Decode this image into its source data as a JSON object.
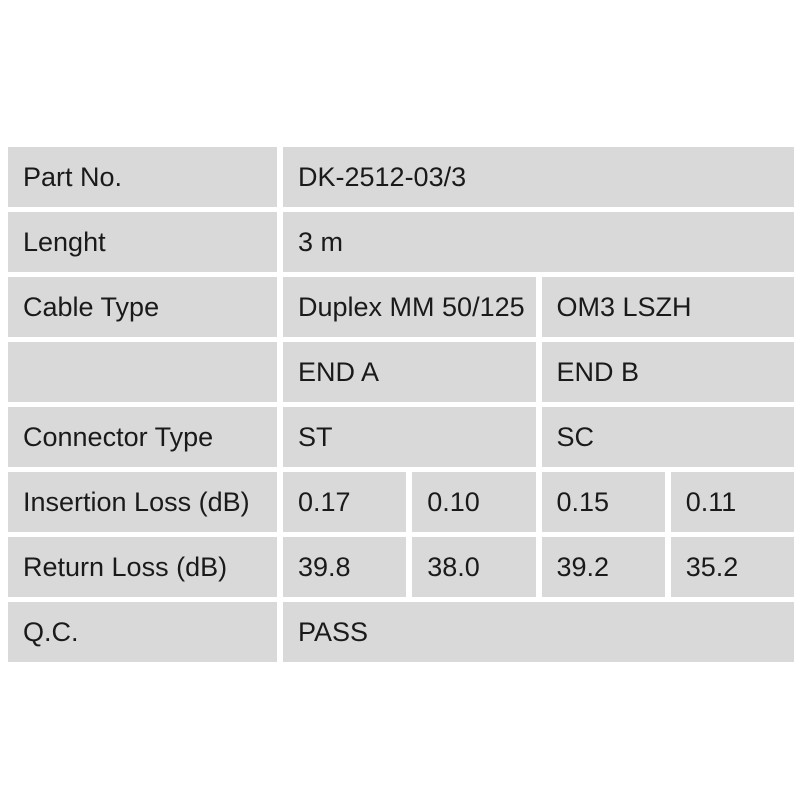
{
  "meta": {
    "page_bg": "#ffffff",
    "cell_bg": "#d9d9d9",
    "text_color": "#1a1a1a",
    "description": "Fiber patch cable specification / QC test table"
  },
  "table": {
    "rows": [
      {
        "label": "Part No.",
        "cells": [
          {
            "text": "DK-2512-03/3",
            "span": 4
          }
        ]
      },
      {
        "label": "Lenght",
        "cells": [
          {
            "text": "3 m",
            "span": 4
          }
        ]
      },
      {
        "label": "Cable Type",
        "cells": [
          {
            "text": "Duplex MM 50/125",
            "span": 2
          },
          {
            "text": "OM3 LSZH",
            "span": 2
          }
        ]
      },
      {
        "label": "",
        "cells": [
          {
            "text": "END A",
            "span": 2
          },
          {
            "text": "END B",
            "span": 2
          }
        ]
      },
      {
        "label": "Connector Type",
        "cells": [
          {
            "text": "ST",
            "span": 2
          },
          {
            "text": "SC",
            "span": 2
          }
        ]
      },
      {
        "label": "Insertion Loss (dB)",
        "cells": [
          {
            "text": "0.17",
            "span": 1
          },
          {
            "text": "0.10",
            "span": 1
          },
          {
            "text": "0.15",
            "span": 1
          },
          {
            "text": "0.11",
            "span": 1
          }
        ]
      },
      {
        "label": "Return Loss (dB)",
        "cells": [
          {
            "text": "39.8",
            "span": 1
          },
          {
            "text": "38.0",
            "span": 1
          },
          {
            "text": "39.2",
            "span": 1
          },
          {
            "text": "35.2",
            "span": 1
          }
        ]
      },
      {
        "label": "Q.C.",
        "cells": [
          {
            "text": "PASS",
            "span": 4
          }
        ]
      }
    ]
  }
}
